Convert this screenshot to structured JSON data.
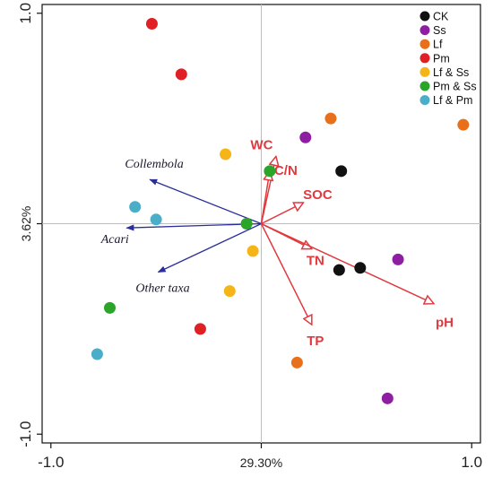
{
  "chart_data": {
    "type": "scatter",
    "xlim": [
      -1.0,
      1.0
    ],
    "ylim": [
      -1.0,
      1.0
    ],
    "x_ticks": [
      {
        "value": -1.0,
        "label": "-1.0"
      },
      {
        "value": 0.0,
        "label": "29.30%"
      },
      {
        "value": 1.0,
        "label": "1.0"
      }
    ],
    "y_ticks": [
      {
        "value": 1.0,
        "label": "1.0"
      },
      {
        "value": 0.0,
        "label": "3.62%"
      },
      {
        "value": -1.0,
        "label": "-1.0"
      }
    ],
    "grid": "zero-lines",
    "legend_position": "top-right",
    "series": [
      {
        "name": "CK",
        "color": "#111111",
        "points": [
          [
            0.38,
            0.25
          ],
          [
            0.37,
            -0.22
          ],
          [
            0.47,
            -0.21
          ]
        ]
      },
      {
        "name": "Ss",
        "color": "#8e1fa3",
        "points": [
          [
            0.21,
            0.41
          ],
          [
            0.65,
            -0.17
          ],
          [
            0.6,
            -0.83
          ]
        ]
      },
      {
        "name": "Lf",
        "color": "#e8701a",
        "points": [
          [
            0.33,
            0.5
          ],
          [
            0.96,
            0.47
          ],
          [
            0.17,
            -0.66
          ]
        ]
      },
      {
        "name": "Pm",
        "color": "#e02025",
        "points": [
          [
            -0.52,
            0.95
          ],
          [
            -0.38,
            0.71
          ],
          [
            -0.29,
            -0.5
          ]
        ]
      },
      {
        "name": "Lf & Ss",
        "color": "#f5b516",
        "points": [
          [
            -0.17,
            0.33
          ],
          [
            -0.04,
            -0.13
          ],
          [
            -0.15,
            -0.32
          ]
        ]
      },
      {
        "name": "Pm & Ss",
        "color": "#2aa52a",
        "points": [
          [
            0.04,
            0.25
          ],
          [
            -0.07,
            0.0
          ],
          [
            -0.72,
            -0.4
          ]
        ]
      },
      {
        "name": "Lf & Pm",
        "color": "#4aaec8",
        "points": [
          [
            -0.6,
            0.08
          ],
          [
            -0.5,
            0.02
          ],
          [
            -0.78,
            -0.62
          ]
        ]
      }
    ],
    "env_vectors": {
      "color": "#e0393e",
      "items": [
        {
          "label": "WC",
          "x": 0.07,
          "y": 0.32
        },
        {
          "label": "C/N",
          "x": 0.04,
          "y": 0.25
        },
        {
          "label": "SOC",
          "x": 0.2,
          "y": 0.1
        },
        {
          "label": "TN",
          "x": 0.24,
          "y": -0.12
        },
        {
          "label": "pH",
          "x": 0.82,
          "y": -0.38
        },
        {
          "label": "TP",
          "x": 0.24,
          "y": -0.48
        }
      ]
    },
    "taxa_vectors": {
      "color": "#2b2f9a",
      "items": [
        {
          "label": "Collembola",
          "x": -0.53,
          "y": 0.21
        },
        {
          "label": "Acari",
          "x": -0.64,
          "y": -0.02
        },
        {
          "label": "Other taxa",
          "x": -0.49,
          "y": -0.23
        }
      ]
    }
  }
}
